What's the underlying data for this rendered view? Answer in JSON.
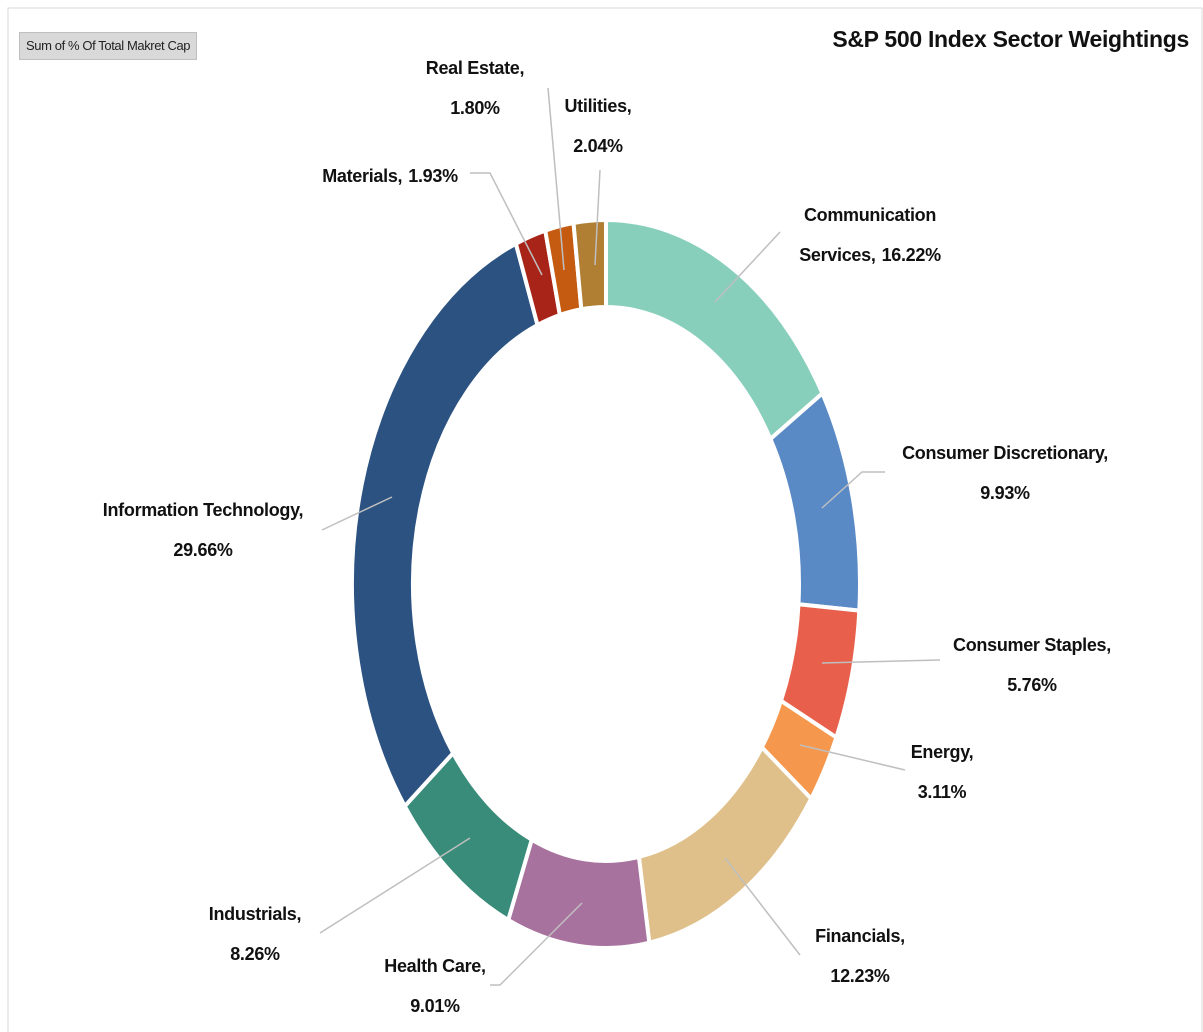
{
  "chart_data": {
    "type": "donut",
    "title": "S&P 500 Index Sector Weightings",
    "field_button": "Sum of % Of Total Makret Cap",
    "categories": [
      "Communication Services,",
      "Consumer Discretionary,",
      "Consumer Staples,",
      "Energy,",
      "Financials,",
      "Health Care,",
      "Industrials,",
      "Information Technology,",
      "Materials,",
      "Real Estate,",
      "Utilities,"
    ],
    "values": [
      16.22,
      9.93,
      5.76,
      3.11,
      12.23,
      9.01,
      8.26,
      29.66,
      1.93,
      1.8,
      2.04
    ],
    "value_labels": [
      "16.22%",
      "9.93%",
      "5.76%",
      "3.11%",
      "12.23%",
      "9.01%",
      "8.26%",
      "29.66%",
      "1.93%",
      "1.80%",
      "2.04%"
    ],
    "colors": [
      "#88cfbb",
      "#5a8ac6",
      "#e8604c",
      "#f5974d",
      "#dfc08a",
      "#a8729e",
      "#3a8c7a",
      "#2b5281",
      "#a82418",
      "#c55a11",
      "#b07f34"
    ]
  }
}
